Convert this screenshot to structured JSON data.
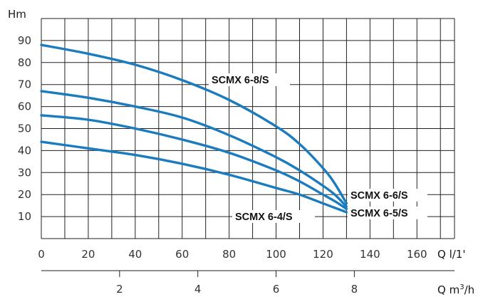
{
  "chart_data": {
    "type": "line",
    "ylabel": "Hm",
    "xlabel": "Q l/1'",
    "x2label_main": "Q m",
    "x2label_sup": "3",
    "x2label_tail": "/h",
    "xlim": [
      0,
      176
    ],
    "ylim": [
      0,
      100
    ],
    "x_ticks": [
      0,
      20,
      40,
      60,
      80,
      100,
      120,
      140,
      160
    ],
    "y_ticks": [
      10,
      20,
      30,
      40,
      50,
      60,
      70,
      80,
      90
    ],
    "x2_ticks": [
      2,
      4,
      6,
      8
    ],
    "x2_factor": 16.6667,
    "grid": true,
    "series": [
      {
        "name": "SCMX 6-8/S",
        "x": [
          0,
          20,
          40,
          60,
          80,
          100,
          110,
          120,
          125,
          130
        ],
        "y": [
          88,
          84,
          79,
          72,
          63,
          51,
          43,
          32,
          25,
          16
        ]
      },
      {
        "name": "SCMX 6-6/S",
        "x": [
          0,
          20,
          40,
          60,
          80,
          100,
          110,
          120,
          125,
          130
        ],
        "y": [
          67,
          64,
          60,
          55,
          47,
          37,
          31,
          24,
          20,
          14.5
        ]
      },
      {
        "name": "SCMX 6-5/S",
        "x": [
          0,
          20,
          40,
          60,
          80,
          100,
          110,
          120,
          125,
          130
        ],
        "y": [
          56,
          54,
          50,
          45,
          39,
          31,
          26,
          20,
          17,
          13.5
        ]
      },
      {
        "name": "SCMX 6-4/S",
        "x": [
          0,
          20,
          40,
          60,
          80,
          100,
          110,
          120,
          125,
          130
        ],
        "y": [
          44,
          41,
          38,
          34,
          29,
          23,
          20,
          16,
          14,
          12
        ]
      }
    ],
    "annotations": [
      {
        "text": "SCMX 6-8/S",
        "series": 0
      },
      {
        "text": "SCMX 6-6/S",
        "series": 1
      },
      {
        "text": "SCMX 6-5/S",
        "series": 2
      },
      {
        "text": "SCMX 6-4/S",
        "series": 3
      }
    ]
  }
}
